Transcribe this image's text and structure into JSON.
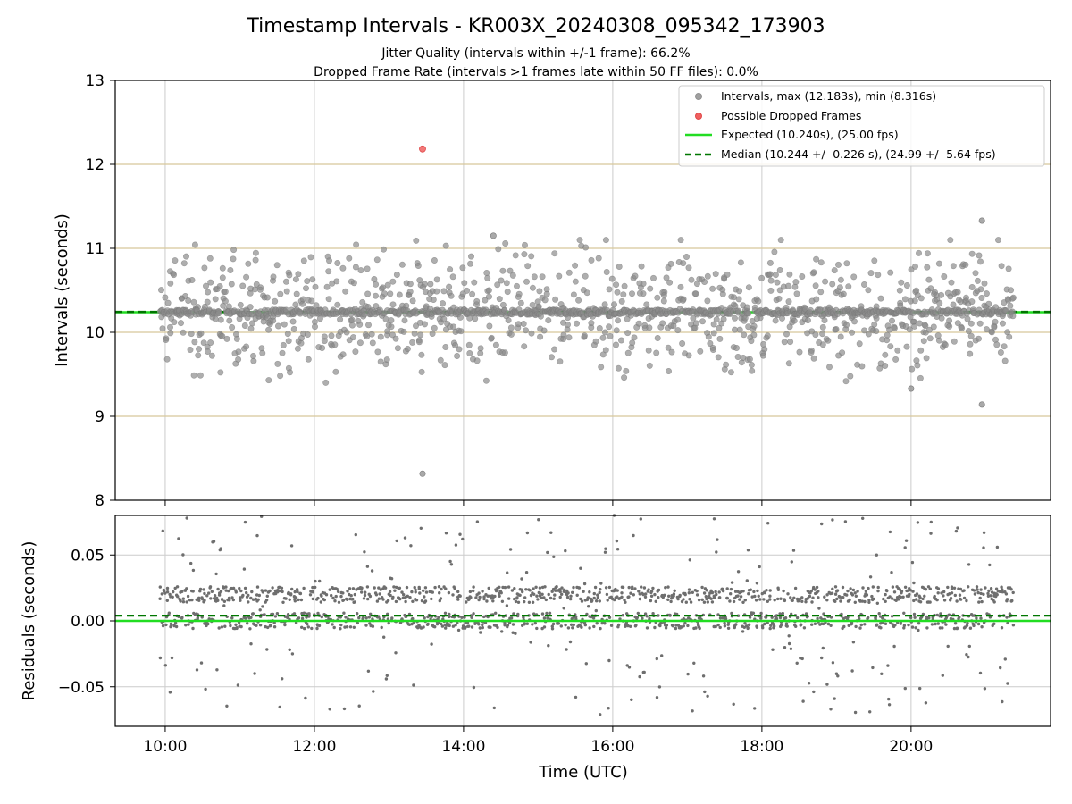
{
  "chart_data": {
    "type": "scatter",
    "title": "Timestamp Intervals - KR003X_20240308_095342_173903",
    "subtitle_lines": [
      "Jitter Quality (intervals within +/-1 frame): 66.2%",
      "Dropped Frame Rate (intervals >1 frames late within 50 FF files): 0.0%"
    ],
    "xlabel": "Time (UTC)",
    "x_range_hours": [
      9.33,
      21.87
    ],
    "x_ticks": [
      {
        "value": 10,
        "label": "10:00"
      },
      {
        "value": 12,
        "label": "12:00"
      },
      {
        "value": 14,
        "label": "14:00"
      },
      {
        "value": 16,
        "label": "16:00"
      },
      {
        "value": 18,
        "label": "18:00"
      },
      {
        "value": 20,
        "label": "20:00"
      }
    ],
    "top_panel": {
      "ylabel": "Intervals (seconds)",
      "ylim": [
        8,
        13
      ],
      "y_ticks": [
        8,
        9,
        10,
        11,
        12,
        13
      ],
      "grid": true,
      "legend_position": "top-right",
      "legend": [
        {
          "label": "Intervals, max (12.183s), min (8.316s)",
          "marker": "circle",
          "color": "#a0a0a0"
        },
        {
          "label": "Possible Dropped Frames",
          "marker": "circle",
          "color": "#f06060"
        },
        {
          "label": "Expected (10.240s), (25.00 fps)",
          "marker": "line",
          "color": "#22dd22"
        },
        {
          "label": "Median (10.244 +/- 0.226 s), (24.99 +/- 5.64 fps)",
          "marker": "dashed",
          "color": "#007700"
        }
      ],
      "expected_interval": 10.24,
      "median_interval": 10.244,
      "dropped_frames": [
        {
          "x": 13.45,
          "y": 12.183
        }
      ],
      "notable_intervals": [
        {
          "x": 13.45,
          "y": 8.316
        },
        {
          "x": 20.95,
          "y": 11.33
        },
        {
          "x": 20.95,
          "y": 9.14
        },
        {
          "x": 14.4,
          "y": 11.15
        },
        {
          "x": 20.0,
          "y": 9.33
        }
      ],
      "interval_series": {
        "x_start": 9.93,
        "x_end": 21.37,
        "center_value": 10.24,
        "count": 1700,
        "spread": 0.35
      }
    },
    "bottom_panel": {
      "ylabel": "Residuals (seconds)",
      "ylim": [
        -0.08,
        0.08
      ],
      "y_ticks": [
        {
          "value": -0.05,
          "label": "−0.05"
        },
        {
          "value": 0.0,
          "label": "0.00"
        },
        {
          "value": 0.05,
          "label": "0.05"
        }
      ],
      "grid": true,
      "expected_residual": 0.0,
      "median_residual": 0.004,
      "residual_series": {
        "x_start": 9.93,
        "x_end": 21.37,
        "count": 1700,
        "clusters": [
          0.02,
          0.0
        ]
      }
    },
    "colors": {
      "interval_point": "#8c8c8c",
      "residual_point": "#6e6e6e",
      "dropped_point": "#f06060",
      "expected_line": "#22dd22",
      "median_line": "#007700",
      "top_grid_horizontal": "#d8c89a",
      "grid": "#cccccc"
    }
  }
}
